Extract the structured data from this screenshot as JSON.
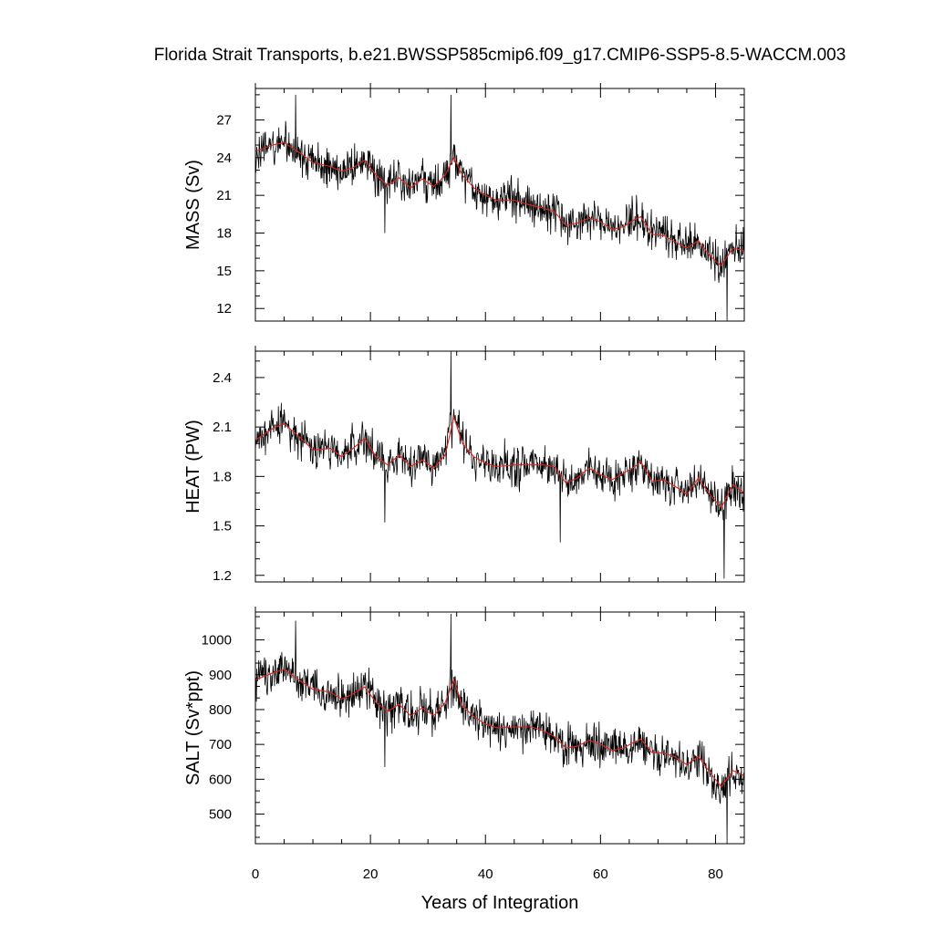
{
  "title": "Florida Strait Transports, b.e21.BWSSP585cmip6.f09_g17.CMIP6-SSP5-8.5-WACCM.003",
  "xlabel": "Years of Integration",
  "colors": {
    "raw": "#000000",
    "smooth": "#e0251f",
    "axis": "#000000"
  },
  "chart_data": [
    {
      "type": "line",
      "panel": "mass",
      "ylabel": "MASS (Sv)",
      "xlim": [
        0,
        85
      ],
      "ylim": [
        11,
        29.5
      ],
      "xticks": [
        0,
        20,
        40,
        60,
        80
      ],
      "yticks": [
        12,
        15,
        18,
        21,
        24,
        27
      ],
      "grid": false,
      "series": [
        {
          "role": "raw",
          "style": "monthly, black thin line",
          "x": [
            0,
            5,
            7,
            10,
            15,
            20,
            22.5,
            25,
            30,
            33.5,
            34,
            37,
            40,
            45,
            50,
            55,
            60,
            65,
            70,
            75,
            80,
            82,
            85
          ],
          "y": [
            24.3,
            25.2,
            29,
            23.7,
            23.5,
            23.4,
            18,
            22.3,
            21.3,
            24.5,
            29,
            22,
            20.5,
            20.2,
            19.8,
            18.6,
            19,
            18.6,
            17.8,
            16.8,
            15.2,
            11,
            16.5
          ]
        },
        {
          "role": "smooth",
          "style": "running mean, red line",
          "x": [
            0,
            3,
            5,
            8,
            10,
            13,
            15,
            17,
            19,
            21,
            23,
            25,
            27,
            29,
            31,
            33,
            34.5,
            36,
            38,
            40,
            42,
            45,
            48,
            50,
            52,
            54,
            56,
            58,
            60,
            62,
            64,
            66,
            67,
            69,
            71,
            73,
            75,
            77,
            79,
            81,
            83,
            85
          ],
          "y": [
            24.5,
            25.0,
            25.2,
            24.3,
            23.6,
            23.3,
            22.9,
            23.2,
            23.8,
            22.6,
            21.8,
            22.4,
            21.6,
            22.3,
            21.7,
            22.6,
            24.0,
            22.6,
            21.6,
            21.0,
            20.6,
            20.6,
            20.2,
            20.0,
            19.7,
            18.6,
            18.8,
            19.2,
            18.9,
            18.3,
            18.5,
            19.1,
            19.3,
            17.9,
            17.8,
            17.3,
            16.8,
            17.4,
            16.2,
            15.4,
            16.8,
            16.6
          ]
        }
      ]
    },
    {
      "type": "line",
      "panel": "heat",
      "ylabel": "HEAT (PW)",
      "xlim": [
        0,
        85
      ],
      "ylim": [
        1.16,
        2.56
      ],
      "xticks": [
        0,
        20,
        40,
        60,
        80
      ],
      "yticks": [
        1.2,
        1.5,
        1.8,
        2.1,
        2.4
      ],
      "grid": false,
      "series": [
        {
          "role": "raw",
          "style": "monthly, black thin line",
          "x": [
            0,
            5,
            10,
            15,
            20,
            22.5,
            25,
            30,
            34,
            37,
            40,
            45,
            50,
            53,
            55,
            60,
            65,
            70,
            75,
            80,
            81.5,
            85
          ],
          "y": [
            2.02,
            2.12,
            2.05,
            1.95,
            1.98,
            1.52,
            1.92,
            1.86,
            2.56,
            1.95,
            1.88,
            1.86,
            1.85,
            1.4,
            1.75,
            1.82,
            1.8,
            1.76,
            1.72,
            1.63,
            1.18,
            1.7
          ]
        },
        {
          "role": "smooth",
          "style": "running mean, red line",
          "x": [
            0,
            3,
            5,
            8,
            10,
            13,
            15,
            17,
            19,
            21,
            23,
            25,
            27,
            29,
            31,
            33,
            34.5,
            36,
            38,
            40,
            42,
            45,
            48,
            50,
            52,
            54,
            56,
            58,
            60,
            62,
            64,
            66,
            67,
            69,
            71,
            73,
            75,
            77,
            79,
            81,
            83,
            85
          ],
          "y": [
            2.02,
            2.09,
            2.12,
            2.03,
            1.96,
            1.97,
            1.92,
            1.97,
            2.03,
            1.92,
            1.87,
            1.93,
            1.86,
            1.9,
            1.85,
            1.93,
            2.16,
            2.0,
            1.92,
            1.88,
            1.86,
            1.87,
            1.87,
            1.87,
            1.86,
            1.76,
            1.79,
            1.85,
            1.81,
            1.78,
            1.82,
            1.86,
            1.89,
            1.77,
            1.78,
            1.74,
            1.69,
            1.79,
            1.69,
            1.61,
            1.75,
            1.7
          ]
        }
      ]
    },
    {
      "type": "line",
      "panel": "salt",
      "ylabel": "SALT (Sv*ppt)",
      "xlim": [
        0,
        85
      ],
      "ylim": [
        415,
        1080
      ],
      "xticks": [
        0,
        20,
        40,
        60,
        80
      ],
      "yticks": [
        500,
        600,
        700,
        800,
        900,
        1000
      ],
      "grid": false,
      "series": [
        {
          "role": "raw",
          "style": "monthly, black thin line",
          "x": [
            0,
            5,
            7,
            10,
            15,
            20,
            22.5,
            25,
            30,
            34,
            37,
            40,
            45,
            50,
            55,
            60,
            65,
            70,
            75,
            80,
            82,
            85
          ],
          "y": [
            880,
            910,
            1055,
            860,
            830,
            850,
            635,
            800,
            775,
            1075,
            800,
            760,
            750,
            730,
            690,
            700,
            690,
            670,
            630,
            580,
            415,
            620
          ]
        },
        {
          "role": "smooth",
          "style": "running mean, red line",
          "x": [
            0,
            3,
            5,
            8,
            10,
            13,
            15,
            17,
            19,
            21,
            23,
            25,
            27,
            29,
            31,
            33,
            34.5,
            36,
            38,
            40,
            42,
            45,
            48,
            50,
            52,
            54,
            56,
            58,
            60,
            62,
            64,
            66,
            67,
            69,
            71,
            73,
            75,
            77,
            79,
            81,
            83,
            85
          ],
          "y": [
            885,
            905,
            915,
            880,
            858,
            850,
            830,
            845,
            865,
            820,
            795,
            815,
            782,
            805,
            782,
            820,
            885,
            810,
            780,
            758,
            748,
            750,
            750,
            740,
            722,
            690,
            695,
            712,
            700,
            682,
            690,
            708,
            715,
            676,
            675,
            664,
            642,
            665,
            620,
            578,
            625,
            610
          ]
        }
      ]
    }
  ]
}
